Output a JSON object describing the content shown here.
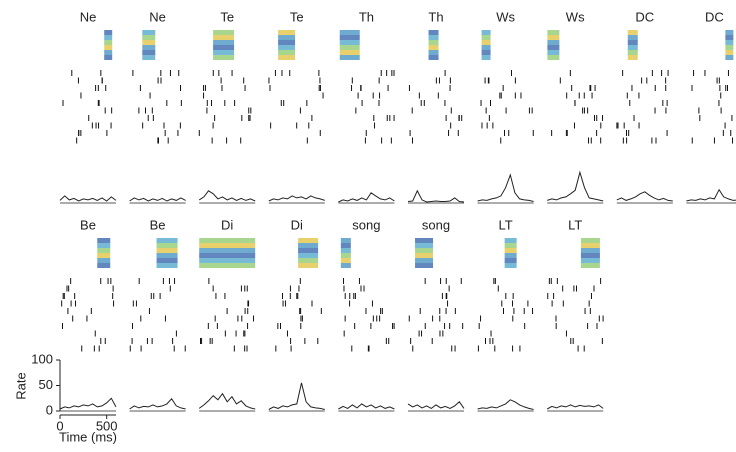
{
  "chart_data": {
    "type": "line",
    "xlabel": "Time (ms)",
    "ylabel": "Rate",
    "xlim": [
      0,
      600
    ],
    "ylim": [
      0,
      100
    ],
    "xticks": [
      0,
      500
    ],
    "yticks": [
      0,
      50,
      100
    ],
    "x": [
      0,
      50,
      100,
      150,
      200,
      250,
      300,
      350,
      400,
      450,
      500,
      550,
      600
    ],
    "color": "#222222",
    "panels": [
      {
        "title": "Ne",
        "values": [
          5,
          14,
          6,
          9,
          4,
          8,
          6,
          9,
          5,
          10,
          4,
          12,
          5
        ]
      },
      {
        "title": "Ne",
        "values": [
          4,
          10,
          6,
          9,
          4,
          8,
          5,
          9,
          4,
          8,
          5,
          10,
          5
        ]
      },
      {
        "title": "Te",
        "values": [
          6,
          12,
          24,
          18,
          8,
          12,
          6,
          10,
          5,
          9,
          5,
          8,
          4
        ]
      },
      {
        "title": "Te",
        "values": [
          4,
          8,
          6,
          10,
          8,
          14,
          10,
          12,
          8,
          14,
          10,
          8,
          5
        ]
      },
      {
        "title": "Th",
        "values": [
          2,
          6,
          4,
          8,
          5,
          10,
          6,
          20,
          14,
          8,
          6,
          10,
          4
        ]
      },
      {
        "title": "Th",
        "values": [
          3,
          4,
          24,
          6,
          2,
          3,
          4,
          3,
          3,
          4,
          10,
          3,
          2
        ]
      },
      {
        "title": "Ws",
        "values": [
          4,
          6,
          5,
          8,
          10,
          14,
          30,
          55,
          20,
          8,
          6,
          5,
          3
        ]
      },
      {
        "title": "Ws",
        "values": [
          5,
          8,
          6,
          10,
          12,
          18,
          25,
          60,
          30,
          10,
          8,
          6,
          4
        ]
      },
      {
        "title": "DC",
        "values": [
          6,
          10,
          5,
          8,
          12,
          18,
          22,
          15,
          10,
          6,
          9,
          5,
          4
        ]
      },
      {
        "title": "DC",
        "values": [
          4,
          6,
          5,
          8,
          6,
          10,
          8,
          26,
          12,
          8,
          5,
          6,
          4
        ]
      },
      {
        "title": "Be",
        "values": [
          4,
          8,
          6,
          10,
          8,
          12,
          10,
          14,
          8,
          10,
          16,
          25,
          8
        ]
      },
      {
        "title": "Be",
        "values": [
          4,
          10,
          6,
          9,
          8,
          12,
          8,
          10,
          14,
          24,
          10,
          6,
          4
        ]
      },
      {
        "title": "Di",
        "values": [
          5,
          12,
          20,
          30,
          22,
          34,
          18,
          28,
          14,
          20,
          10,
          6,
          4
        ]
      },
      {
        "title": "Di",
        "values": [
          3,
          8,
          5,
          10,
          8,
          12,
          14,
          55,
          18,
          8,
          6,
          5,
          3
        ]
      },
      {
        "title": "song",
        "values": [
          4,
          9,
          5,
          12,
          6,
          14,
          8,
          12,
          6,
          10,
          5,
          8,
          4
        ]
      },
      {
        "title": "song",
        "values": [
          14,
          8,
          12,
          6,
          10,
          5,
          12,
          6,
          9,
          5,
          10,
          18,
          5
        ]
      },
      {
        "title": "LT",
        "values": [
          4,
          6,
          5,
          8,
          6,
          10,
          14,
          22,
          18,
          12,
          8,
          5,
          3
        ]
      },
      {
        "title": "LT",
        "values": [
          4,
          9,
          6,
          10,
          8,
          12,
          8,
          11,
          9,
          10,
          8,
          12,
          5
        ]
      }
    ]
  }
}
